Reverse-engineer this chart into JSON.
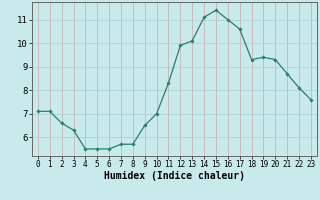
{
  "x": [
    0,
    1,
    2,
    3,
    4,
    5,
    6,
    7,
    8,
    9,
    10,
    11,
    12,
    13,
    14,
    15,
    16,
    17,
    18,
    19,
    20,
    21,
    22,
    23
  ],
  "y": [
    7.1,
    7.1,
    6.6,
    6.3,
    5.5,
    5.5,
    5.5,
    5.7,
    5.7,
    6.5,
    7.0,
    8.3,
    9.9,
    10.1,
    11.1,
    11.4,
    11.0,
    10.6,
    9.3,
    9.4,
    9.3,
    8.7,
    8.1,
    7.6
  ],
  "line_color": "#2e7d6e",
  "marker": "D",
  "marker_size": 1.8,
  "bg_color": "#c8eaea",
  "grid_color_vert": "#c8a8a8",
  "grid_color_horiz": "#a8cece",
  "xlabel": "Humidex (Indice chaleur)",
  "xlabel_fontsize": 7,
  "ylabel_ticks": [
    6,
    7,
    8,
    9,
    10,
    11
  ],
  "xlim": [
    -0.5,
    23.5
  ],
  "ylim": [
    5.2,
    11.75
  ],
  "xtick_fontsize": 5.5,
  "ytick_fontsize": 6.5,
  "spine_color": "#666666",
  "linewidth": 0.9
}
